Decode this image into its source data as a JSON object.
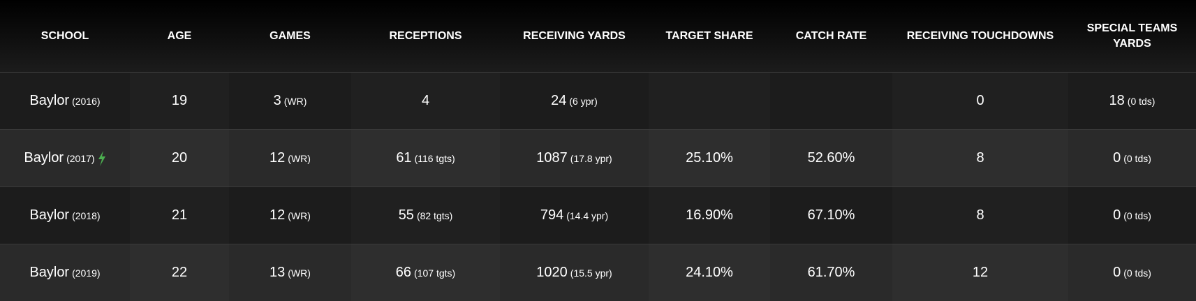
{
  "table": {
    "columns": [
      "SCHOOL",
      "AGE",
      "GAMES",
      "RECEPTIONS",
      "RECEIVING YARDS",
      "TARGET SHARE",
      "CATCH RATE",
      "RECEIVING TOUCHDOWNS",
      "SPECIAL TEAMS YARDS"
    ],
    "rows": [
      {
        "cells": [
          {
            "main": "Baylor",
            "note": "(2016)"
          },
          {
            "main": "19"
          },
          {
            "main": "3",
            "note": "(WR)"
          },
          {
            "main": "4"
          },
          {
            "main": "24",
            "note": "(6 ypr)"
          },
          null,
          null,
          {
            "main": "0"
          },
          {
            "main": "18",
            "note": "(0 tds)"
          }
        ]
      },
      {
        "cells": [
          {
            "main": "Baylor",
            "note": "(2017)"
          },
          {
            "main": "20"
          },
          {
            "main": "12",
            "note": "(WR)"
          },
          {
            "main": "61",
            "note": "(116 tgts)"
          },
          {
            "main": "1087",
            "note": "(17.8 ypr)"
          },
          {
            "main": "25.10%"
          },
          {
            "main": "52.60%"
          },
          {
            "main": "8"
          },
          {
            "main": "0",
            "note": "(0 tds)"
          }
        ],
        "icon": true
      },
      {
        "cells": [
          {
            "main": "Baylor",
            "note": "(2018)"
          },
          {
            "main": "21"
          },
          {
            "main": "12",
            "note": "(WR)"
          },
          {
            "main": "55",
            "note": "(82 tgts)"
          },
          {
            "main": "794",
            "note": "(14.4 ypr)"
          },
          {
            "main": "16.90%"
          },
          {
            "main": "67.10%"
          },
          {
            "main": "8"
          },
          {
            "main": "0",
            "note": "(0 tds)"
          }
        ]
      },
      {
        "cells": [
          {
            "main": "Baylor",
            "note": "(2019)"
          },
          {
            "main": "22"
          },
          {
            "main": "13",
            "note": "(WR)"
          },
          {
            "main": "66",
            "note": "(107 tgts)"
          },
          {
            "main": "1020",
            "note": "(15.5 ypr)"
          },
          {
            "main": "24.10%"
          },
          {
            "main": "61.70%"
          },
          {
            "main": "12"
          },
          {
            "main": "0",
            "note": "(0 tds)"
          }
        ]
      }
    ]
  }
}
